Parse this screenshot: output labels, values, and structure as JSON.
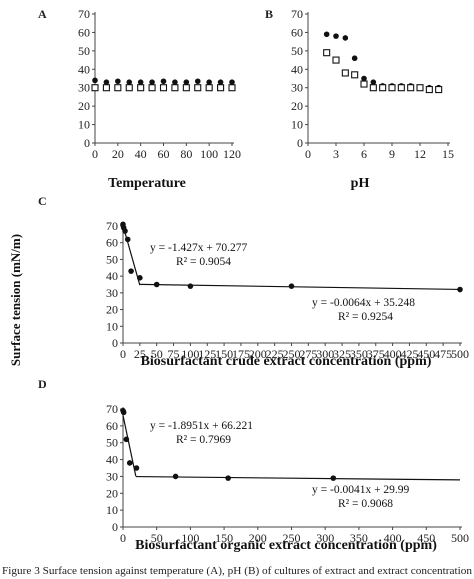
{
  "figure": {
    "shared_ylabel": "Surface tension (mN/m)",
    "caption": "Figure 3 Surface tension against temperature (A), pH (B) of cultures of extract and extract concentration"
  },
  "chart_data": [
    {
      "panel": "A",
      "type": "scatter",
      "xlabel": "Temperature",
      "ylabel": "",
      "xlim": [
        0,
        120
      ],
      "ylim": [
        0,
        70
      ],
      "xticks": [
        0,
        20,
        40,
        60,
        80,
        100,
        120
      ],
      "yticks": [
        0,
        10,
        20,
        30,
        40,
        50,
        60,
        70
      ],
      "series": [
        {
          "marker": "filled-circle",
          "x": [
            0,
            10,
            20,
            30,
            40,
            50,
            60,
            70,
            80,
            90,
            100,
            110,
            120
          ],
          "y": [
            34,
            33,
            33.5,
            33,
            33,
            33,
            33.5,
            33,
            33,
            33.5,
            33,
            33,
            33
          ]
        },
        {
          "marker": "open-square",
          "x": [
            0,
            10,
            20,
            30,
            40,
            50,
            60,
            70,
            80,
            90,
            100,
            110,
            120
          ],
          "y": [
            30,
            30,
            30,
            30,
            30,
            30,
            30,
            30,
            30,
            30,
            30,
            30,
            30
          ]
        }
      ]
    },
    {
      "panel": "B",
      "type": "scatter",
      "xlabel": "pH",
      "ylabel": "",
      "xlim": [
        0,
        15
      ],
      "ylim": [
        0,
        70
      ],
      "xticks": [
        0,
        3,
        6,
        9,
        12,
        15
      ],
      "yticks": [
        0,
        10,
        20,
        30,
        40,
        50,
        60,
        70
      ],
      "series": [
        {
          "marker": "filled-circle",
          "x": [
            2,
            3,
            4,
            5,
            6,
            7,
            8,
            9,
            10,
            11,
            12,
            13,
            14
          ],
          "y": [
            59,
            58,
            57,
            46,
            35,
            33,
            31,
            31,
            31,
            31,
            30,
            30,
            30
          ]
        },
        {
          "marker": "open-square",
          "x": [
            2,
            3,
            4,
            5,
            6,
            7,
            8,
            9,
            10,
            11,
            12,
            13,
            14
          ],
          "y": [
            49,
            45,
            38,
            37,
            32,
            30,
            30,
            30,
            30,
            30,
            30,
            29,
            29
          ]
        }
      ]
    },
    {
      "panel": "C",
      "type": "line",
      "xlabel": "Biosurfactant crude extract concentration (ppm)",
      "ylabel": "Surface tension (mN/m)",
      "xlim": [
        0,
        500
      ],
      "ylim": [
        0,
        70
      ],
      "xticks": [
        0,
        25,
        50,
        75,
        100,
        125,
        150,
        175,
        200,
        225,
        250,
        275,
        300,
        325,
        350,
        375,
        400,
        425,
        450,
        475,
        500
      ],
      "yticks": [
        0,
        10,
        20,
        30,
        40,
        50,
        60,
        70
      ],
      "series": [
        {
          "marker": "filled-circle",
          "x": [
            0,
            1,
            3,
            7,
            12,
            25,
            50,
            100,
            250,
            500
          ],
          "y": [
            71,
            69,
            67,
            62,
            43,
            39,
            35,
            34,
            34,
            32
          ]
        }
      ],
      "trendlines": [
        {
          "x": [
            0,
            25
          ],
          "slope": -1.427,
          "intercept": 70.277
        },
        {
          "x": [
            25,
            500
          ],
          "slope": -0.0064,
          "intercept": 35.248
        }
      ],
      "annotations": [
        {
          "equation": "y = -1.427x + 70.277",
          "r2": "R² = 0.9054"
        },
        {
          "equation": "y = -0.0064x + 35.248",
          "r2": "R² = 0.9254"
        }
      ]
    },
    {
      "panel": "D",
      "type": "line",
      "xlabel": "Biosurfactant organic extract concentration (ppm)",
      "ylabel": "",
      "xlim": [
        0,
        500
      ],
      "ylim": [
        0,
        70
      ],
      "xticks": [
        0,
        50,
        100,
        150,
        200,
        250,
        300,
        350,
        400,
        450,
        500
      ],
      "yticks": [
        0,
        10,
        20,
        30,
        40,
        50,
        60,
        70
      ],
      "series": [
        {
          "marker": "filled-circle",
          "x": [
            0,
            1,
            5,
            10,
            20,
            78,
            156,
            312
          ],
          "y": [
            69,
            68,
            52,
            38,
            35,
            30,
            29,
            29
          ]
        }
      ],
      "trendlines": [
        {
          "x": [
            0,
            19
          ],
          "slope": -1.8951,
          "intercept": 66.221
        },
        {
          "x": [
            19,
            500
          ],
          "slope": -0.0041,
          "intercept": 29.99
        }
      ],
      "annotations": [
        {
          "equation": "y = -1.8951x + 66.221",
          "r2": "R² = 0.7969"
        },
        {
          "equation": "y = -0.0041x + 29.99",
          "r2": "R² = 0.9068"
        }
      ]
    }
  ]
}
